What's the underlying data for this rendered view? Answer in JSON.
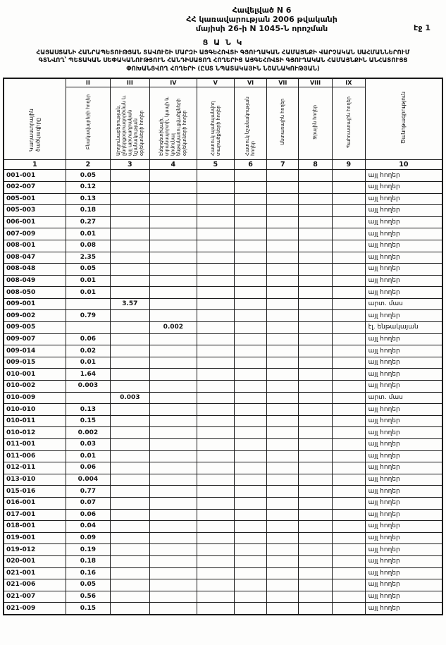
{
  "page": {
    "appendix_line1": "Հավելված N 6",
    "appendix_line2": "ՀՀ կառավարության 2006 թվականի",
    "appendix_line3": "մայիսի 26-ի N 1045-Ն որոշման",
    "page_number": "էջ 1",
    "doc_type": "Ց Ա Ն Կ",
    "title": "ՀԱՅԱՍՏԱՆԻ ՀԱՆՐԱՊԵՏՈՒԹՅԱՆ ՏԱՎՈՒՇԻ ՄԱՐԶԻ ԱՅԳԵՀՈՎՏԻ ԳՅՈՒՂԱԿԱՆ ՀԱՄԱՅՆՔԻ ՎԱՐՉԱԿԱՆ ՍԱՀՄԱՆՆԵՐՈՒՄ ԳՏՆՎՈՂ՝ ՊԵՏԱԿԱՆ ՍԵՓԱԿԱՆՈՒԹՅՈՒՆ ՀԱՆԴԻՍԱՑՈՂ ՀՈՂԵՐԻՑ ԱՅԳԵՀՈՎՏԻ ԳՅՈՒՂԱԿԱՆ ՀԱՄԱՅՆՔԻՆ ԱՆՀԱՏՈՒՅՑ ՓՈԽԱՆՑՎՈՂ ՀՈՂԵՐԻ (ԸՍՏ ՆՊԱՏԱԿԱՅԻՆ ՆՇԱՆԱԿՈՒԹՅԱՆ)"
  },
  "table": {
    "roman_numerals": [
      "II",
      "III",
      "IV",
      "V",
      "VI",
      "VII",
      "VIII",
      "IX"
    ],
    "headers": [
      "Կադաստրային ծածկագիրը",
      "Բնակավայրերի հողեր",
      "Արդյունաբերության, ընդերքօգտագործման և այլ արտադրական նշանակության օբյեկտների հողեր",
      "Էներգետիկայի, տրանսպորտի, կապի և կոմունալ ենթակառուցվածքների օբյեկտների հողեր",
      "Հատուկ պահպանվող տարածքների հողեր",
      "Հատուկ նշանակության հողեր",
      "Անտառային հողեր",
      "Ջրային հողեր",
      "Պահուստային հողեր",
      "Ծանոթագրություն"
    ],
    "column_numbers": [
      "1",
      "2",
      "3",
      "4",
      "5",
      "6",
      "7",
      "8",
      "9",
      "10"
    ],
    "rows": [
      [
        "001-001",
        "0.05",
        "",
        "",
        "",
        "",
        "",
        "",
        "",
        "այլ հողեր"
      ],
      [
        "002-007",
        "0.12",
        "",
        "",
        "",
        "",
        "",
        "",
        "",
        "այլ հողեր"
      ],
      [
        "005-001",
        "0.13",
        "",
        "",
        "",
        "",
        "",
        "",
        "",
        "այլ հողեր"
      ],
      [
        "005-003",
        "0.18",
        "",
        "",
        "",
        "",
        "",
        "",
        "",
        "այլ հողեր"
      ],
      [
        "006-001",
        "0.27",
        "",
        "",
        "",
        "",
        "",
        "",
        "",
        "այլ հողեր"
      ],
      [
        "007-009",
        "0.01",
        "",
        "",
        "",
        "",
        "",
        "",
        "",
        "այլ հողեր"
      ],
      [
        "008-001",
        "0.08",
        "",
        "",
        "",
        "",
        "",
        "",
        "",
        "այլ հողեր"
      ],
      [
        "008-047",
        "2.35",
        "",
        "",
        "",
        "",
        "",
        "",
        "",
        "այլ հողեր"
      ],
      [
        "008-048",
        "0.05",
        "",
        "",
        "",
        "",
        "",
        "",
        "",
        "այլ հողեր"
      ],
      [
        "008-049",
        "0.01",
        "",
        "",
        "",
        "",
        "",
        "",
        "",
        "այլ հողեր"
      ],
      [
        "008-050",
        "0.01",
        "",
        "",
        "",
        "",
        "",
        "",
        "",
        "այլ հողեր"
      ],
      [
        "009-001",
        "",
        "3.57",
        "",
        "",
        "",
        "",
        "",
        "",
        "արտ. մաս"
      ],
      [
        "009-002",
        "0.79",
        "",
        "",
        "",
        "",
        "",
        "",
        "",
        "այլ հողեր"
      ],
      [
        "009-005",
        "",
        "",
        "0.002",
        "",
        "",
        "",
        "",
        "",
        "էլ. ենթակայան"
      ],
      [
        "009-007",
        "0.06",
        "",
        "",
        "",
        "",
        "",
        "",
        "",
        "այլ հողեր"
      ],
      [
        "009-014",
        "0.02",
        "",
        "",
        "",
        "",
        "",
        "",
        "",
        "այլ հողեր"
      ],
      [
        "009-015",
        "0.01",
        "",
        "",
        "",
        "",
        "",
        "",
        "",
        "այլ հողեր"
      ],
      [
        "010-001",
        "1.64",
        "",
        "",
        "",
        "",
        "",
        "",
        "",
        "այլ հողեր"
      ],
      [
        "010-002",
        "0.003",
        "",
        "",
        "",
        "",
        "",
        "",
        "",
        "այլ հողեր"
      ],
      [
        "010-009",
        "",
        "0.003",
        "",
        "",
        "",
        "",
        "",
        "",
        "արտ. մաս"
      ],
      [
        "010-010",
        "0.13",
        "",
        "",
        "",
        "",
        "",
        "",
        "",
        "այլ հողեր"
      ],
      [
        "010-011",
        "0.15",
        "",
        "",
        "",
        "",
        "",
        "",
        "",
        "այլ հողեր"
      ],
      [
        "010-012",
        "0.002",
        "",
        "",
        "",
        "",
        "",
        "",
        "",
        "այլ հողեր"
      ],
      [
        "011-001",
        "0.03",
        "",
        "",
        "",
        "",
        "",
        "",
        "",
        "այլ հողեր"
      ],
      [
        "011-006",
        "0.01",
        "",
        "",
        "",
        "",
        "",
        "",
        "",
        "այլ հողեր"
      ],
      [
        "012-011",
        "0.06",
        "",
        "",
        "",
        "",
        "",
        "",
        "",
        "այլ հողեր"
      ],
      [
        "013-010",
        "0.004",
        "",
        "",
        "",
        "",
        "",
        "",
        "",
        "այլ հողեր"
      ],
      [
        "015-016",
        "0.77",
        "",
        "",
        "",
        "",
        "",
        "",
        "",
        "այլ հողեր"
      ],
      [
        "016-001",
        "0.07",
        "",
        "",
        "",
        "",
        "",
        "",
        "",
        "այլ հողեր"
      ],
      [
        "017-001",
        "0.06",
        "",
        "",
        "",
        "",
        "",
        "",
        "",
        "այլ հողեր"
      ],
      [
        "018-001",
        "0.04",
        "",
        "",
        "",
        "",
        "",
        "",
        "",
        "այլ հողեր"
      ],
      [
        "019-001",
        "0.09",
        "",
        "",
        "",
        "",
        "",
        "",
        "",
        "այլ հողեր"
      ],
      [
        "019-012",
        "0.19",
        "",
        "",
        "",
        "",
        "",
        "",
        "",
        "այլ հողեր"
      ],
      [
        "020-001",
        "0.18",
        "",
        "",
        "",
        "",
        "",
        "",
        "",
        "այլ հողեր"
      ],
      [
        "021-001",
        "0.16",
        "",
        "",
        "",
        "",
        "",
        "",
        "",
        "այլ հողեր"
      ],
      [
        "021-006",
        "0.05",
        "",
        "",
        "",
        "",
        "",
        "",
        "",
        "այլ հողեր"
      ],
      [
        "021-007",
        "0.56",
        "",
        "",
        "",
        "",
        "",
        "",
        "",
        "այլ հողեր"
      ],
      [
        "021-009",
        "0.15",
        "",
        "",
        "",
        "",
        "",
        "",
        "",
        "այլ հողեր"
      ]
    ]
  }
}
